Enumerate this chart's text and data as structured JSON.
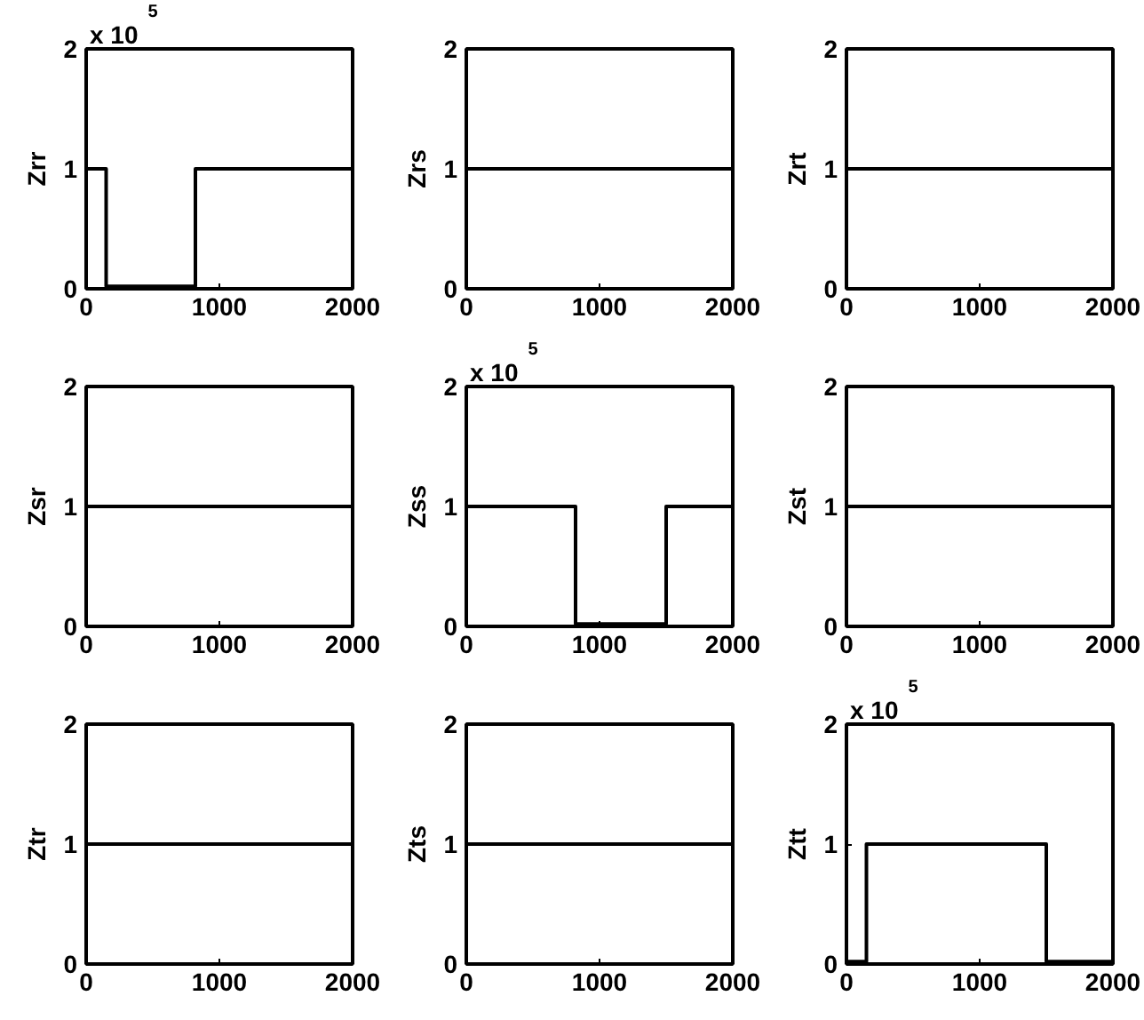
{
  "chart_data": [
    {
      "type": "line",
      "ylabel": "Zrr",
      "annotations": [
        "x 10$^{5}$"
      ],
      "xlim": [
        0,
        2000
      ],
      "ylim": [
        0,
        2
      ],
      "xticks": [
        0,
        1000,
        2000
      ],
      "yticks": [
        0,
        1,
        2
      ],
      "grid": false,
      "series": [
        {
          "color": "#000000",
          "x": [
            0,
            150,
            150,
            820,
            820,
            2000
          ],
          "values": [
            1,
            1,
            0.02,
            0.02,
            1,
            1
          ]
        }
      ]
    },
    {
      "type": "line",
      "ylabel": "Zrs",
      "xlim": [
        0,
        2000
      ],
      "ylim": [
        0,
        2
      ],
      "xticks": [
        0,
        1000,
        2000
      ],
      "yticks": [
        0,
        1,
        2
      ],
      "grid": false,
      "series": [
        {
          "color": "#000000",
          "x": [
            0,
            2000
          ],
          "values": [
            1,
            1
          ]
        }
      ]
    },
    {
      "type": "line",
      "ylabel": "Zrt",
      "xlim": [
        0,
        2000
      ],
      "ylim": [
        0,
        2
      ],
      "xticks": [
        0,
        1000,
        2000
      ],
      "yticks": [
        0,
        1,
        2
      ],
      "grid": false,
      "series": [
        {
          "color": "#000000",
          "x": [
            0,
            2000
          ],
          "values": [
            1,
            1
          ]
        }
      ]
    },
    {
      "type": "line",
      "ylabel": "Zsr",
      "xlim": [
        0,
        2000
      ],
      "ylim": [
        0,
        2
      ],
      "xticks": [
        0,
        1000,
        2000
      ],
      "yticks": [
        0,
        1,
        2
      ],
      "grid": false,
      "series": [
        {
          "color": "#000000",
          "x": [
            0,
            2000
          ],
          "values": [
            1,
            1
          ]
        }
      ]
    },
    {
      "type": "line",
      "ylabel": "Zss",
      "annotations": [
        "x 10$^{5}$"
      ],
      "xlim": [
        0,
        2000
      ],
      "ylim": [
        0,
        2
      ],
      "xticks": [
        0,
        1000,
        2000
      ],
      "yticks": [
        0,
        1,
        2
      ],
      "grid": false,
      "series": [
        {
          "color": "#000000",
          "x": [
            0,
            820,
            820,
            1500,
            1500,
            2000
          ],
          "values": [
            1,
            1,
            0.02,
            0.02,
            1,
            1
          ]
        }
      ]
    },
    {
      "type": "line",
      "ylabel": "Zst",
      "xlim": [
        0,
        2000
      ],
      "ylim": [
        0,
        2
      ],
      "xticks": [
        0,
        1000,
        2000
      ],
      "yticks": [
        0,
        1,
        2
      ],
      "grid": false,
      "series": [
        {
          "color": "#000000",
          "x": [
            0,
            2000
          ],
          "values": [
            1,
            1
          ]
        }
      ]
    },
    {
      "type": "line",
      "ylabel": "Ztr",
      "xlim": [
        0,
        2000
      ],
      "ylim": [
        0,
        2
      ],
      "xticks": [
        0,
        1000,
        2000
      ],
      "yticks": [
        0,
        1,
        2
      ],
      "grid": false,
      "series": [
        {
          "color": "#000000",
          "x": [
            0,
            2000
          ],
          "values": [
            1,
            1
          ]
        }
      ]
    },
    {
      "type": "line",
      "ylabel": "Zts",
      "xlim": [
        0,
        2000
      ],
      "ylim": [
        0,
        2
      ],
      "xticks": [
        0,
        1000,
        2000
      ],
      "yticks": [
        0,
        1,
        2
      ],
      "grid": false,
      "series": [
        {
          "color": "#000000",
          "x": [
            0,
            2000
          ],
          "values": [
            1,
            1
          ]
        }
      ]
    },
    {
      "type": "line",
      "ylabel": "Ztt",
      "annotations": [
        "x 10$^{5}$"
      ],
      "xlim": [
        0,
        2000
      ],
      "ylim": [
        0,
        2
      ],
      "xticks": [
        0,
        1000,
        2000
      ],
      "yticks": [
        0,
        1,
        2
      ],
      "grid": false,
      "series": [
        {
          "color": "#000000",
          "x": [
            0,
            150,
            150,
            1500,
            1500,
            2000
          ],
          "values": [
            0.02,
            0.02,
            1,
            1,
            0.02,
            0.02
          ]
        }
      ]
    }
  ]
}
